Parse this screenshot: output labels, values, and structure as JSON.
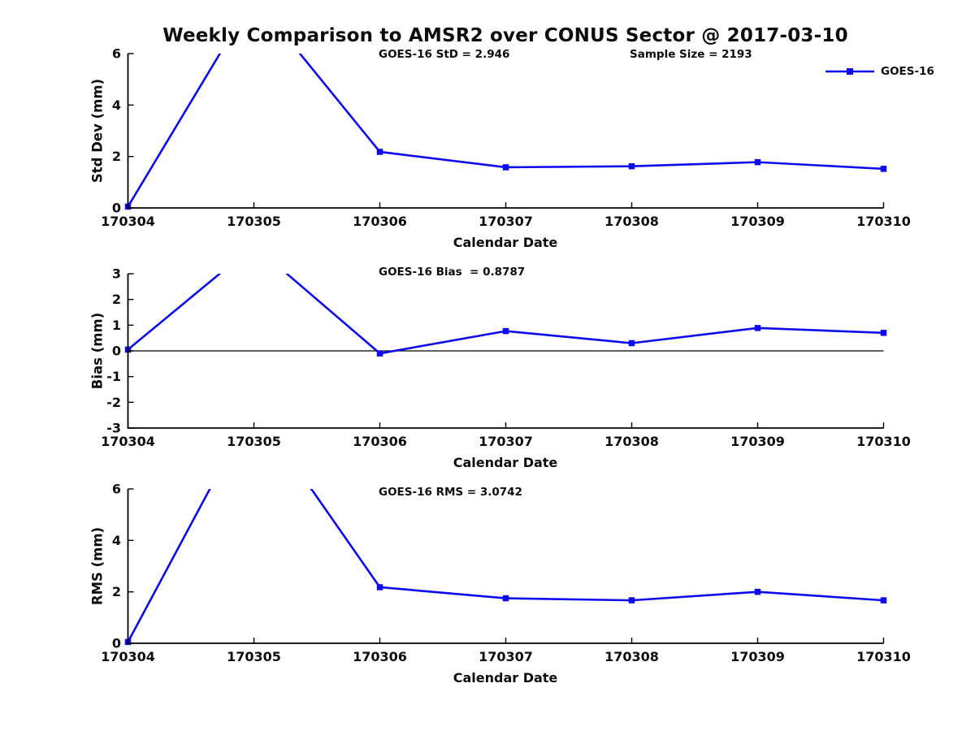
{
  "title": "Weekly Comparison to AMSR2 over CONUS Sector @ 2017-03-10",
  "legend": {
    "label": "GOES-16"
  },
  "colors": {
    "line": "#0b0bee",
    "axis": "#000000",
    "text": "#0d0d0d"
  },
  "chart_data": [
    {
      "type": "line",
      "name": "std-dev",
      "annotations": [
        "GOES-16 StD = 2.946",
        "Sample Size = 2193"
      ],
      "categories": [
        "170304",
        "170305",
        "170306",
        "170307",
        "170308",
        "170309",
        "170310"
      ],
      "series": [
        {
          "name": "GOES-16",
          "values": [
            0.05,
            8.2,
            2.18,
            1.58,
            1.62,
            1.78,
            1.52
          ]
        }
      ],
      "xlabel": "Calendar Date",
      "ylabel": "Std Dev (mm)",
      "ylim": [
        0,
        6
      ],
      "yticks": [
        0,
        2,
        4,
        6
      ],
      "zero_line": false,
      "grid": false,
      "legend_position": "top-right",
      "marker": "square"
    },
    {
      "type": "line",
      "name": "bias",
      "annotations": [
        "GOES-16 Bias  = 0.8787"
      ],
      "categories": [
        "170304",
        "170305",
        "170306",
        "170307",
        "170308",
        "170309",
        "170310"
      ],
      "series": [
        {
          "name": "GOES-16",
          "values": [
            0.05,
            4.1,
            -0.1,
            0.77,
            0.3,
            0.89,
            0.7
          ]
        }
      ],
      "xlabel": "Calendar Date",
      "ylabel": "Bias (mm)",
      "ylim": [
        -3,
        3
      ],
      "yticks": [
        -3,
        -2,
        -1,
        0,
        1,
        2,
        3
      ],
      "zero_line": true,
      "grid": false,
      "marker": "square"
    },
    {
      "type": "line",
      "name": "rms",
      "annotations": [
        "GOES-16 RMS = 3.0742"
      ],
      "categories": [
        "170304",
        "170305",
        "170306",
        "170307",
        "170308",
        "170309",
        "170310"
      ],
      "series": [
        {
          "name": "GOES-16",
          "values": [
            0.05,
            9.2,
            2.18,
            1.75,
            1.67,
            2.0,
            1.67
          ]
        }
      ],
      "xlabel": "Calendar Date",
      "ylabel": "RMS (mm)",
      "ylim": [
        0,
        6
      ],
      "yticks": [
        0,
        2,
        4,
        6
      ],
      "zero_line": false,
      "grid": false,
      "marker": "square"
    }
  ]
}
